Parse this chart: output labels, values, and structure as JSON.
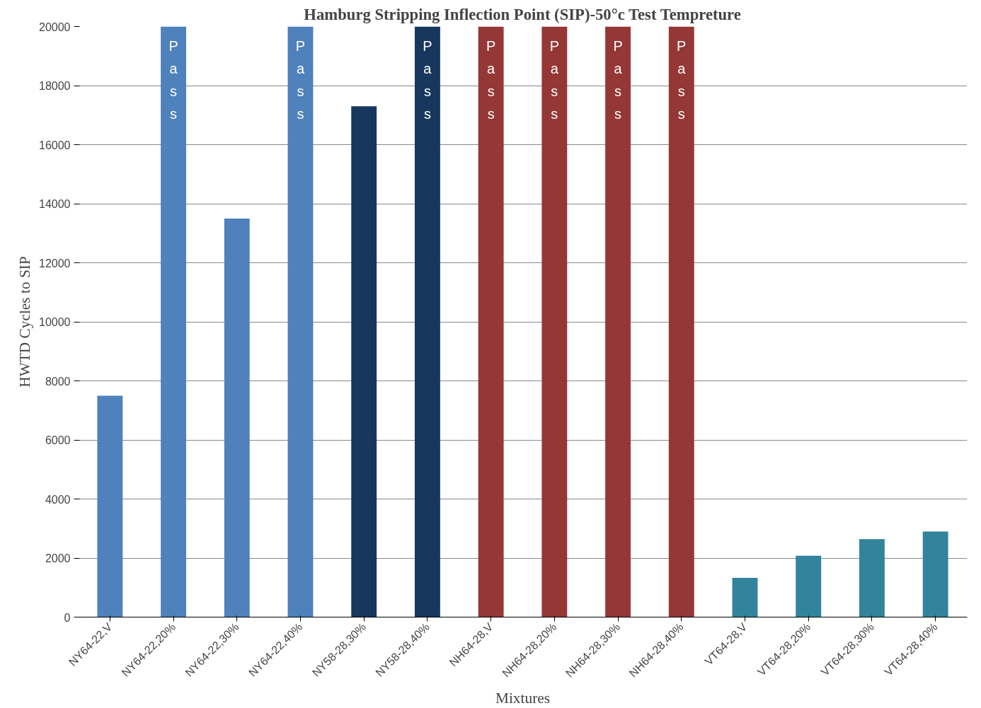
{
  "chart_data": {
    "type": "bar",
    "title": "Hamburg Stripping Inflection Point (SIP)-50°c Test Tempreture",
    "xlabel": "Mixtures",
    "ylabel": "HWTD Cycles to SIP",
    "categories": [
      "NY64-22,V",
      "NY64-22,20%",
      "NY64-22,30%",
      "NY64-22,40%",
      "NY58-28,30%",
      "NY58-28,40%",
      "NH64-28,V",
      "NH64-28,20%",
      "NH64-28,30%",
      "NH64-28,40%",
      "VT64-28,V",
      "VT64-28,20%",
      "VT64-28,30%",
      "VT64-28,40%"
    ],
    "values": [
      7500,
      20000,
      13500,
      20000,
      17300,
      20000,
      20000,
      20000,
      20000,
      20000,
      1330,
      2080,
      2640,
      2900
    ],
    "colors": [
      "#4f81bd",
      "#4f81bd",
      "#4f81bd",
      "#4f81bd",
      "#17375e",
      "#17375e",
      "#953735",
      "#953735",
      "#953735",
      "#953735",
      "#31849b",
      "#31849b",
      "#31849b",
      "#31849b"
    ],
    "value_labels": [
      null,
      "Pass",
      null,
      "Pass",
      null,
      "Pass",
      "Pass",
      "Pass",
      "Pass",
      "Pass",
      null,
      null,
      null,
      null
    ],
    "ylim": [
      0,
      20000
    ],
    "yticks": [
      0,
      2000,
      4000,
      6000,
      8000,
      10000,
      12000,
      14000,
      16000,
      18000,
      20000
    ],
    "grid": "y"
  }
}
